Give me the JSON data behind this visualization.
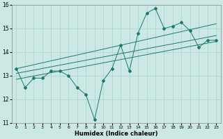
{
  "xlabel": "Humidex (Indice chaleur)",
  "ylabel": "",
  "bg_color": "#cce8e5",
  "line_color": "#1a7a6e",
  "grid_color": "#afd4d0",
  "xlim": [
    -0.5,
    23.5
  ],
  "ylim": [
    11,
    16
  ],
  "yticks": [
    11,
    12,
    13,
    14,
    15,
    16
  ],
  "xticks": [
    0,
    1,
    2,
    3,
    4,
    5,
    6,
    7,
    8,
    9,
    10,
    11,
    12,
    13,
    14,
    15,
    16,
    17,
    18,
    19,
    20,
    21,
    22,
    23
  ],
  "main_series": {
    "x": [
      0,
      1,
      2,
      3,
      4,
      5,
      6,
      7,
      8,
      9,
      10,
      11,
      12,
      13,
      14,
      15,
      16,
      17,
      18,
      19,
      20,
      21,
      22,
      23
    ],
    "y": [
      13.3,
      12.5,
      12.9,
      12.9,
      13.2,
      13.2,
      13.0,
      12.5,
      12.2,
      11.15,
      12.8,
      13.3,
      14.3,
      13.2,
      14.8,
      15.65,
      15.85,
      15.0,
      15.1,
      15.25,
      14.9,
      14.2,
      14.5,
      14.5
    ]
  },
  "trend_lines": [
    {
      "x": [
        0,
        23
      ],
      "y": [
        13.3,
        15.2
      ]
    },
    {
      "x": [
        0,
        23
      ],
      "y": [
        13.1,
        14.7
      ]
    },
    {
      "x": [
        0,
        23
      ],
      "y": [
        12.85,
        14.45
      ]
    }
  ]
}
